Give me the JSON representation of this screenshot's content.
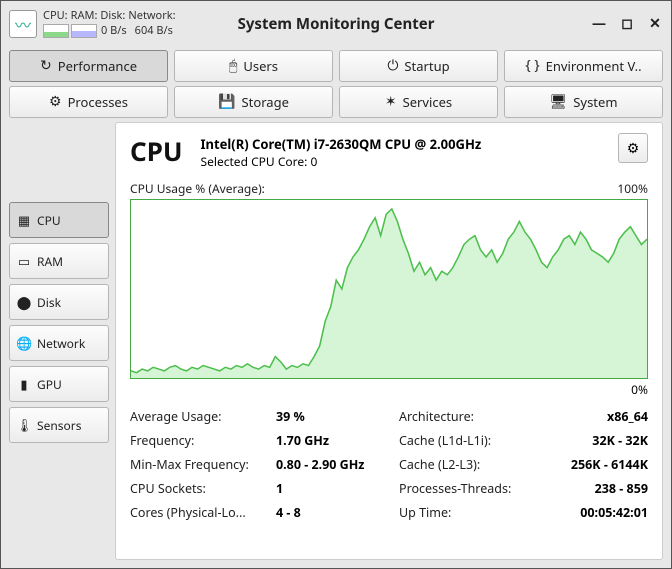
{
  "window": {
    "title": "System Monitoring Center",
    "sys_labels": {
      "cpu": "CPU:",
      "ram": "RAM:",
      "disk": "Disk:",
      "net": "Network:"
    },
    "sys_values": {
      "disk": "0 B/s",
      "net": "604 B/s"
    },
    "mini_bars": {
      "cpu_fill_color": "#8cd98c",
      "ram_fill_color": "#b7b7ff",
      "cpu_pct": 35,
      "ram_pct": 45
    }
  },
  "tabs_row1": [
    {
      "icon": "↻",
      "label": "Performance",
      "active": true
    },
    {
      "icon": "🖱",
      "label": "Users",
      "active": false
    },
    {
      "icon": "⏻",
      "label": "Startup",
      "active": false
    },
    {
      "icon": "{ }",
      "label": "Environment V..",
      "active": false
    }
  ],
  "tabs_row2": [
    {
      "icon": "⚙",
      "label": "Processes"
    },
    {
      "icon": "💾",
      "label": "Storage"
    },
    {
      "icon": "✶",
      "label": "Services"
    },
    {
      "icon": "🖥",
      "label": "System"
    }
  ],
  "sidebar": [
    {
      "icon": "▦",
      "label": "CPU",
      "active": true
    },
    {
      "icon": "▭",
      "label": "RAM"
    },
    {
      "icon": "⬤",
      "label": "Disk"
    },
    {
      "icon": "🌐",
      "label": "Network"
    },
    {
      "icon": "▮",
      "label": "GPU"
    },
    {
      "icon": "🌡",
      "label": "Sensors"
    }
  ],
  "cpu": {
    "title": "CPU",
    "model": "Intel(R) Core(TM) i7-2630QM CPU @ 2.00GHz",
    "selected_core": "Selected CPU Core: 0",
    "chart_label": "CPU Usage % (Average):",
    "chart_max": "100%",
    "chart_min": "0%",
    "chart": {
      "stroke_color": "#4cbf4c",
      "fill_color": "#c5f0c5",
      "fill_opacity": 0.7,
      "ylim": [
        0,
        100
      ],
      "values": [
        4,
        3,
        5,
        4,
        6,
        5,
        4,
        6,
        7,
        5,
        4,
        6,
        5,
        7,
        6,
        5,
        4,
        6,
        5,
        7,
        6,
        8,
        6,
        5,
        7,
        6,
        12,
        9,
        5,
        7,
        6,
        8,
        7,
        12,
        18,
        32,
        40,
        55,
        50,
        62,
        68,
        72,
        78,
        85,
        90,
        80,
        92,
        95,
        88,
        78,
        70,
        60,
        65,
        58,
        62,
        55,
        60,
        58,
        62,
        68,
        75,
        78,
        80,
        72,
        68,
        72,
        65,
        70,
        78,
        82,
        88,
        82,
        78,
        72,
        65,
        62,
        68,
        72,
        78,
        80,
        75,
        82,
        78,
        72,
        70,
        68,
        65,
        70,
        78,
        82,
        85,
        80,
        75,
        78
      ]
    },
    "stats_left": [
      {
        "k": "Average Usage:",
        "v": "39 %"
      },
      {
        "k": "Frequency:",
        "v": "1.70 GHz"
      },
      {
        "k": "Min-Max Frequency:",
        "v": "0.80 - 2.90 GHz"
      },
      {
        "k": "CPU Sockets:",
        "v": "1"
      },
      {
        "k": "Cores (Physical-Lo...",
        "v": "4 - 8"
      }
    ],
    "stats_right": [
      {
        "k": "Architecture:",
        "v": "x86_64"
      },
      {
        "k": "Cache (L1d-L1i):",
        "v": "32K - 32K"
      },
      {
        "k": "Cache (L2-L3):",
        "v": "256K - 6144K"
      },
      {
        "k": "Processes-Threads:",
        "v": "238 - 859"
      },
      {
        "k": "Up Time:",
        "v": "00:05:42:01"
      }
    ]
  }
}
